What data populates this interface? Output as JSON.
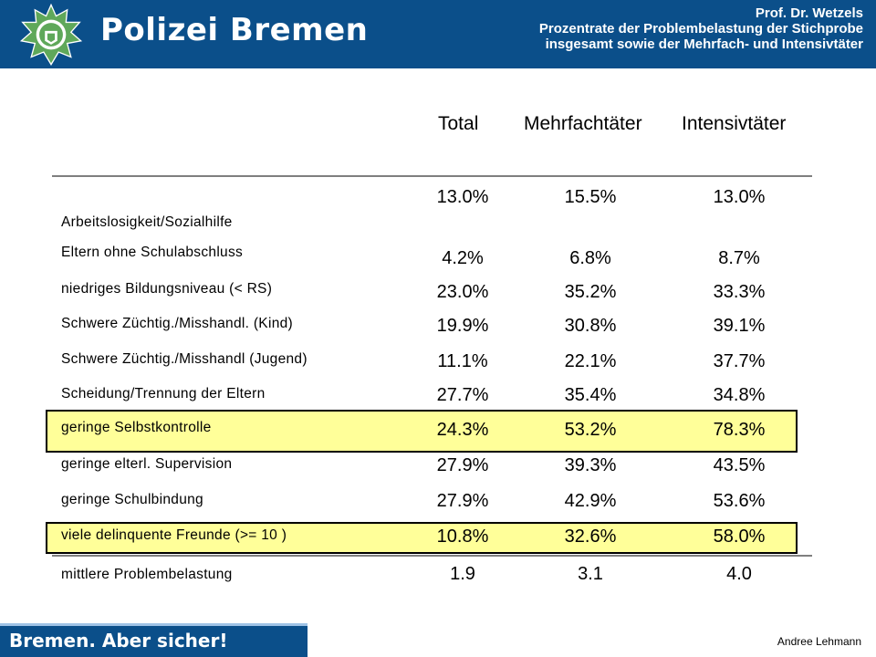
{
  "header": {
    "brand": "Polizei Bremen",
    "author_title": "Prof. Dr. Wetzels",
    "subtitle_line1": "Prozentrate der Problembelastung der Stichprobe",
    "subtitle_line2": "insgesamt sowie der Mehrfach- und Intensivtäter"
  },
  "table": {
    "columns": [
      "Total",
      "Mehrfachtäter",
      "Intensivtäter"
    ],
    "rows": [
      {
        "label": "Arbeitslosigkeit/Sozialhilfe",
        "values": [
          "13.0%",
          "15.5%",
          "13.0%"
        ]
      },
      {
        "label": "Eltern ohne Schulabschluss",
        "values": [
          "4.2%",
          "6.8%",
          "8.7%"
        ]
      },
      {
        "label": "niedriges Bildungsniveau (< RS)",
        "values": [
          "23.0%",
          "35.2%",
          "33.3%"
        ]
      },
      {
        "label": "Schwere Züchtig./Misshandl. (Kind)",
        "values": [
          "19.9%",
          "30.8%",
          "39.1%"
        ]
      },
      {
        "label": "Schwere Züchtig./Misshandl (Jugend)",
        "values": [
          "11.1%",
          "22.1%",
          "37.7%"
        ]
      },
      {
        "label": "Scheidung/Trennung der Eltern",
        "values": [
          "27.7%",
          "35.4%",
          "34.8%"
        ]
      },
      {
        "label": "geringe Selbstkontrolle",
        "values": [
          "24.3%",
          "53.2%",
          "78.3%"
        ]
      },
      {
        "label": "geringe elterl. Supervision",
        "values": [
          "27.9%",
          "39.3%",
          "43.5%"
        ]
      },
      {
        "label": "geringe Schulbindung",
        "values": [
          "27.9%",
          "42.9%",
          "53.6%"
        ]
      },
      {
        "label": "viele delinquente Freunde (>= 10 )",
        "values": [
          "10.8%",
          "32.6%",
          "58.0%"
        ]
      },
      {
        "label": "mittlere Problembelastung",
        "values": [
          "1.9",
          "3.1",
          "4.0"
        ]
      }
    ]
  },
  "footer": {
    "slogan": "Bremen. Aber sicher!",
    "author": "Andree Lehmann"
  },
  "colors": {
    "header_blue": "#0b4f8a",
    "highlight": "#ffff99"
  }
}
